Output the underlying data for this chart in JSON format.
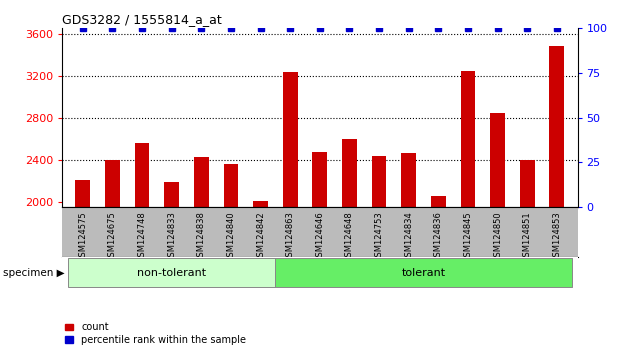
{
  "title": "GDS3282 / 1555814_a_at",
  "samples": [
    "GSM124575",
    "GSM124675",
    "GSM124748",
    "GSM124833",
    "GSM124838",
    "GSM124840",
    "GSM124842",
    "GSM124863",
    "GSM124646",
    "GSM124648",
    "GSM124753",
    "GSM124834",
    "GSM124836",
    "GSM124845",
    "GSM124850",
    "GSM124851",
    "GSM124853"
  ],
  "counts": [
    2210,
    2400,
    2560,
    2190,
    2430,
    2360,
    2010,
    3230,
    2470,
    2600,
    2440,
    2460,
    2060,
    3240,
    2840,
    2400,
    3480
  ],
  "groups": [
    "non-tolerant",
    "non-tolerant",
    "non-tolerant",
    "non-tolerant",
    "non-tolerant",
    "non-tolerant",
    "non-tolerant",
    "tolerant",
    "tolerant",
    "tolerant",
    "tolerant",
    "tolerant",
    "tolerant",
    "tolerant",
    "tolerant",
    "tolerant",
    "tolerant"
  ],
  "non_tolerant_color": "#ccffcc",
  "tolerant_color": "#66ee66",
  "bar_color": "#cc0000",
  "percentile_color": "#0000cc",
  "tick_area_color": "#bbbbbb",
  "ylim_left": [
    1950,
    3650
  ],
  "ylim_right": [
    0,
    100
  ],
  "yticks_left": [
    2000,
    2400,
    2800,
    3200,
    3600
  ],
  "yticks_right": [
    0,
    25,
    50,
    75,
    100
  ],
  "grid_values": [
    2400,
    2800,
    3200,
    3600
  ],
  "legend_count_label": "count",
  "legend_percentile_label": "percentile rank within the sample",
  "specimen_label": "specimen",
  "background_color": "#ffffff",
  "bar_width": 0.5
}
